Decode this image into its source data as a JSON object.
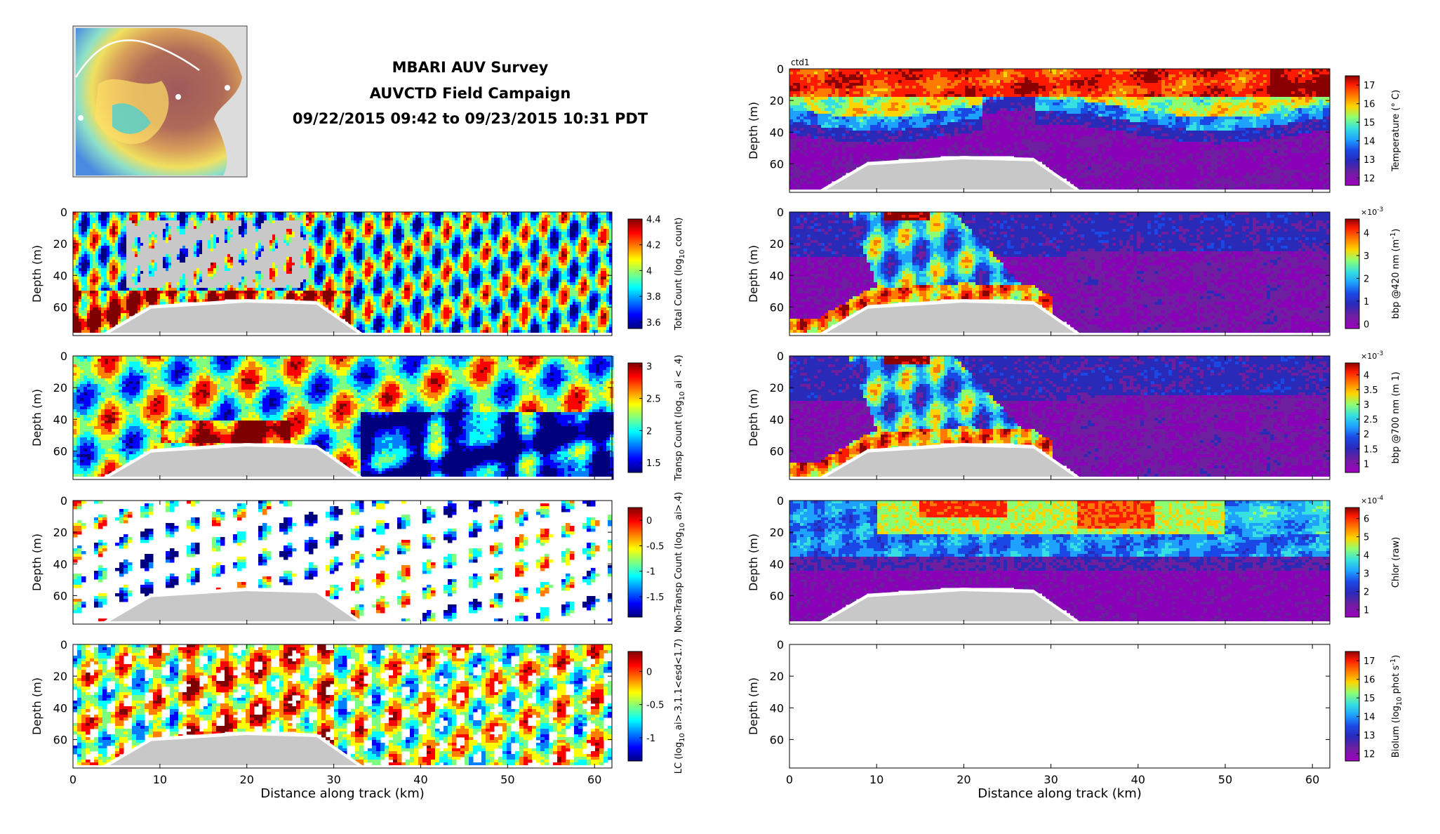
{
  "header": {
    "title_line_1": "MBARI AUV Survey",
    "title_line_2": "AUVCTD Field Campaign",
    "title_line_3": "09/22/2015 09:42 to 09/23/2015 10:31 PDT"
  },
  "colors": {
    "bathymetry_gray": "#c8c8c8",
    "map_land": "#dcdcdc",
    "map_deep_water": "#9e5a5a",
    "jet_scale": [
      "#00007f",
      "#0000ff",
      "#007fff",
      "#00ffff",
      "#7fff7f",
      "#ffff00",
      "#ff7f00",
      "#ff0000",
      "#7f0000"
    ],
    "magenta_scale": [
      "#8a00b8",
      "#6d1fa0",
      "#2a2ab8",
      "#1a48e6",
      "#1fa2ff",
      "#36e0e0",
      "#8cff73",
      "#ffd500",
      "#ff7a00",
      "#ff1a00",
      "#8a0000"
    ]
  },
  "chart_data": [
    {
      "id": "location-map",
      "type": "map",
      "title": "",
      "track": "white survey line across the bay (no printed values)"
    },
    {
      "id": "total-count",
      "type": "heatmap",
      "column": "left",
      "row": 1,
      "xlabel": "",
      "ylabel": "Depth (m)",
      "xlim": [
        0,
        62
      ],
      "ylim": [
        78,
        0
      ],
      "yticks": [
        0,
        20,
        40,
        60
      ],
      "colorbar": {
        "label": "Total Count (log",
        "label_sub": "10",
        "label_end": " count)",
        "range": [
          3.55,
          4.4
        ],
        "ticks": [
          "4.4",
          "4.2",
          "4",
          "3.8",
          "3.6"
        ]
      },
      "gaps": true
    },
    {
      "id": "transp-count",
      "type": "heatmap",
      "column": "left",
      "row": 2,
      "xlabel": "",
      "ylabel": "Depth (m)",
      "xlim": [
        0,
        62
      ],
      "ylim": [
        78,
        0
      ],
      "yticks": [
        0,
        20,
        40,
        60
      ],
      "colorbar": {
        "label": "Transp Count (log",
        "label_sub": "10",
        "label_end": " ai < .4)",
        "range": [
          1.35,
          3.05
        ],
        "ticks": [
          "3",
          "2.5",
          "2",
          "1.5"
        ]
      }
    },
    {
      "id": "non-transp-count",
      "type": "heatmap",
      "column": "left",
      "row": 3,
      "xlabel": "",
      "ylabel": "Depth (m)",
      "xlim": [
        0,
        62
      ],
      "ylim": [
        78,
        0
      ],
      "yticks": [
        0,
        20,
        40,
        60
      ],
      "colorbar": {
        "label": "Non-Transp Count (log",
        "label_sub": "10",
        "label_end": " ai>.4)",
        "range": [
          -1.9,
          0.25
        ],
        "ticks": [
          "0",
          "-0.5",
          "-1",
          "-1.5"
        ]
      },
      "sparse": true
    },
    {
      "id": "lc",
      "type": "heatmap",
      "column": "left",
      "row": 4,
      "xlabel": "Distance along track (km)",
      "ylabel": "Depth (m)",
      "xlim": [
        0,
        62
      ],
      "ylim": [
        78,
        0
      ],
      "xticks": [
        0,
        10,
        20,
        30,
        40,
        50,
        60
      ],
      "yticks": [
        0,
        20,
        40,
        60
      ],
      "colorbar": {
        "label": "LC (log",
        "label_sub": "10",
        "label_end": " ai>.3,1.1<esd<1.7)",
        "range": [
          -1.35,
          0.3
        ],
        "ticks": [
          "0",
          "-0.5",
          "-1"
        ]
      },
      "gaps": true
    },
    {
      "id": "temperature",
      "type": "heatmap",
      "column": "right",
      "row": 0,
      "panel_tag": "ctd1",
      "xlabel": "",
      "ylabel": "Depth (m)",
      "xlim": [
        0,
        62
      ],
      "ylim": [
        78,
        0
      ],
      "yticks": [
        0,
        20,
        40,
        60
      ],
      "colorbar": {
        "label": "Temperature (° C)",
        "range": [
          11.6,
          17.5
        ],
        "ticks": [
          "17",
          "16",
          "15",
          "14",
          "13",
          "12"
        ]
      },
      "pattern": "warm surface layer above ~25 m, sharp thermocline near 35-45 m, cold water below"
    },
    {
      "id": "bbp420",
      "type": "heatmap",
      "column": "right",
      "row": 1,
      "xlabel": "",
      "ylabel": "Depth (m)",
      "xlim": [
        0,
        62
      ],
      "ylim": [
        78,
        0
      ],
      "yticks": [
        0,
        20,
        40,
        60
      ],
      "colorbar": {
        "label": "bbp @420 nm (m",
        "label_sup": "-1",
        "label_end": ")",
        "exponent": "×10",
        "exponent_power": "-3",
        "range": [
          -0.2,
          4.6
        ],
        "ticks": [
          "4",
          "3",
          "2",
          "1",
          "0"
        ]
      },
      "pattern": "high values in plume near 12-20 km and near-bottom 0-30 km"
    },
    {
      "id": "bbp700",
      "type": "heatmap",
      "column": "right",
      "row": 2,
      "xlabel": "",
      "ylabel": "Depth (m)",
      "xlim": [
        0,
        62
      ],
      "ylim": [
        78,
        0
      ],
      "yticks": [
        0,
        20,
        40,
        60
      ],
      "colorbar": {
        "label": "bbp @700 nm (m 1)",
        "exponent": "×10",
        "exponent_power": "-3",
        "range": [
          0.7,
          4.4
        ],
        "ticks": [
          "4",
          "3.5",
          "3",
          "2.5",
          "2",
          "1.5",
          "1"
        ]
      },
      "pattern": "same structure as bbp @420 nm"
    },
    {
      "id": "chlor",
      "type": "heatmap",
      "column": "right",
      "row": 3,
      "xlabel": "",
      "ylabel": "Depth (m)",
      "xlim": [
        0,
        62
      ],
      "ylim": [
        78,
        0
      ],
      "yticks": [
        0,
        20,
        40,
        60
      ],
      "colorbar": {
        "label": "Chlor (raw)",
        "exponent": "×10",
        "exponent_power": "-4",
        "range": [
          0.6,
          6.6
        ],
        "ticks": [
          "6",
          "5",
          "4",
          "3",
          "2",
          "1"
        ]
      },
      "pattern": "chlorophyll maximum 0-25 m between 10 and 50 km"
    },
    {
      "id": "biolum",
      "type": "heatmap",
      "column": "right",
      "row": 4,
      "xlabel": "Distance along track (km)",
      "ylabel": "Depth (m)",
      "xlim": [
        0,
        62
      ],
      "ylim": [
        78,
        0
      ],
      "xticks": [
        0,
        10,
        20,
        30,
        40,
        50,
        60
      ],
      "yticks": [
        0,
        20,
        40,
        60
      ],
      "colorbar": {
        "label": "Biolum (log",
        "label_sub": "10",
        "label_end": " phot s",
        "label_sup": "-1",
        "label_close": ")",
        "range": [
          11.6,
          17.5
        ],
        "ticks": [
          "17",
          "16",
          "15",
          "14",
          "13",
          "12"
        ]
      },
      "empty": true
    }
  ]
}
